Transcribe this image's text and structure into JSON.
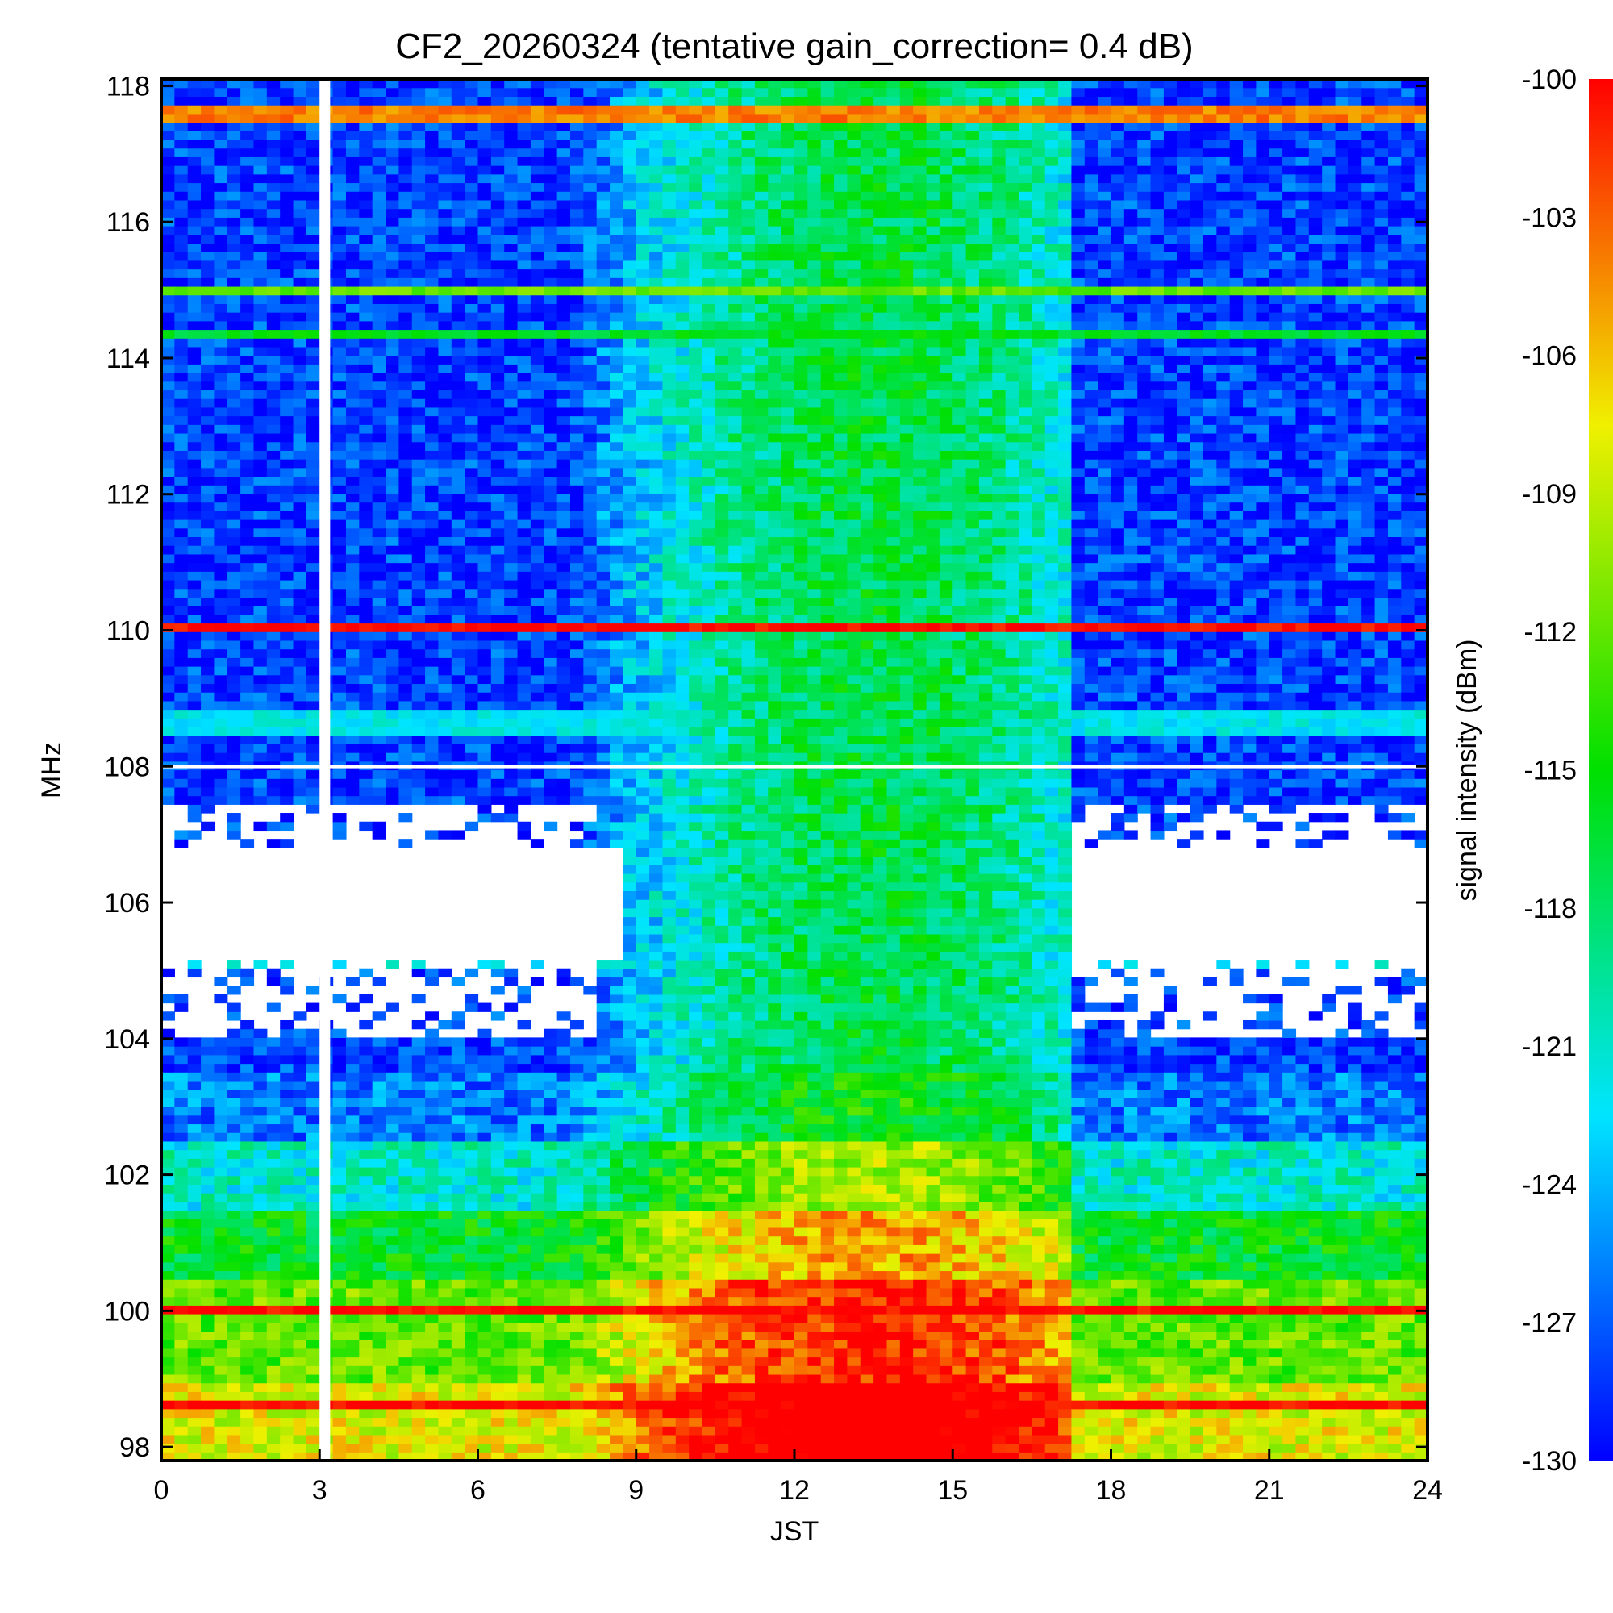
{
  "chart_data": {
    "type": "heatmap",
    "title": "CF2_20260324 (tentative gain_correction=  0.4 dB)",
    "xlabel": "JST",
    "ylabel": "MHz",
    "xlim": [
      0,
      24
    ],
    "ylim": [
      97.8,
      118.1
    ],
    "x_ticks": [
      "0",
      "3",
      "6",
      "9",
      "12",
      "15",
      "18",
      "21",
      "24"
    ],
    "x_tick_values": [
      0,
      3,
      6,
      9,
      12,
      15,
      18,
      21,
      24
    ],
    "y_ticks": [
      "98",
      "100",
      "102",
      "104",
      "106",
      "108",
      "110",
      "112",
      "114",
      "116",
      "118"
    ],
    "y_tick_values": [
      98,
      100,
      102,
      104,
      106,
      108,
      110,
      112,
      114,
      116,
      118
    ],
    "colorbar": {
      "label": "signal intensity (dBm)",
      "ticks": [
        "-100",
        "-103",
        "-106",
        "-109",
        "-112",
        "-115",
        "-118",
        "-121",
        "-124",
        "-127",
        "-130"
      ],
      "tick_values": [
        -100,
        -103,
        -106,
        -109,
        -112,
        -115,
        -118,
        -121,
        -124,
        -127,
        -130
      ],
      "range": [
        -130,
        -100
      ]
    },
    "data_gap": {
      "x_start": 3.0,
      "x_end": 3.2,
      "description_shown": false
    },
    "strong_lines_mhz": [
      {
        "freq": 117.6,
        "level_dbm": -104
      },
      {
        "freq": 115.0,
        "level_dbm": -112
      },
      {
        "freq": 114.4,
        "level_dbm": -116
      },
      {
        "freq": 110.05,
        "level_dbm": -100
      },
      {
        "freq": 108.7,
        "level_dbm": -122
      },
      {
        "freq": 108.5,
        "level_dbm": -122
      },
      {
        "freq": 105.05,
        "level_dbm": -122
      },
      {
        "freq": 100.05,
        "level_dbm": -100
      },
      {
        "freq": 98.6,
        "level_dbm": -100
      }
    ],
    "daytime_enhancement": {
      "x_start": 7.5,
      "x_end": 17.0,
      "peak_x": 13.5
    }
  }
}
